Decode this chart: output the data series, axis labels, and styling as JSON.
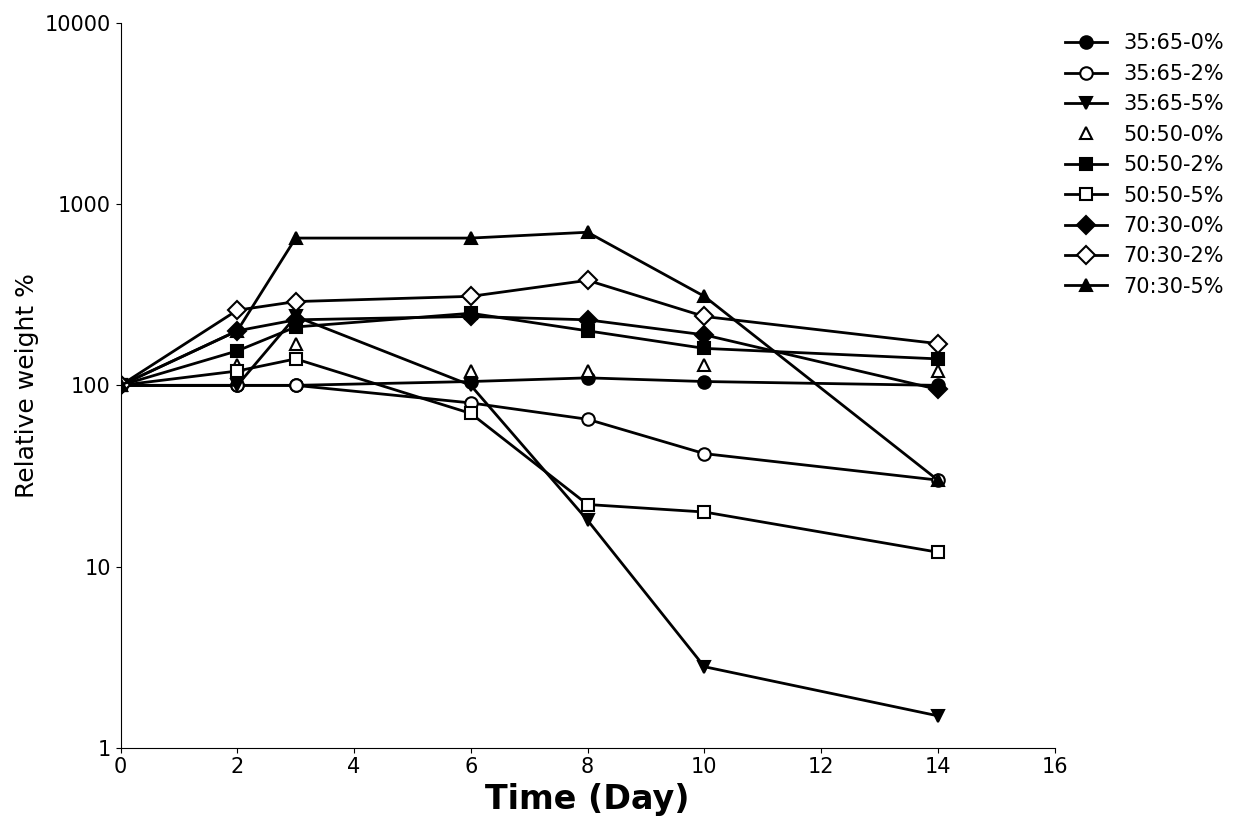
{
  "series": [
    {
      "label": "35:65-0%",
      "x": [
        0,
        2,
        3,
        6,
        8,
        10,
        14
      ],
      "y": [
        100,
        100,
        100,
        105,
        110,
        105,
        100
      ],
      "marker": "o",
      "fillstyle": "full",
      "linestyle": "-",
      "markersize": 9,
      "linewidth": 2.0
    },
    {
      "label": "35:65-2%",
      "x": [
        0,
        2,
        3,
        6,
        8,
        10,
        14
      ],
      "y": [
        100,
        100,
        100,
        80,
        65,
        42,
        30
      ],
      "marker": "o",
      "fillstyle": "none",
      "linestyle": "-",
      "markersize": 9,
      "linewidth": 2.0
    },
    {
      "label": "35:65-5%",
      "x": [
        0,
        2,
        3,
        6,
        8,
        10,
        14
      ],
      "y": [
        100,
        100,
        240,
        100,
        18,
        2.8,
        1.5
      ],
      "marker": "v",
      "fillstyle": "full",
      "linestyle": "-",
      "markersize": 9,
      "linewidth": 2.0
    },
    {
      "label": "50:50-0%",
      "x": [
        0,
        2,
        3,
        6,
        8,
        10,
        14
      ],
      "y": [
        100,
        130,
        170,
        120,
        120,
        130,
        120
      ],
      "marker": "^",
      "fillstyle": "none",
      "linestyle": "none",
      "markersize": 9,
      "linewidth": 2.0
    },
    {
      "label": "50:50-2%",
      "x": [
        0,
        2,
        3,
        6,
        8,
        10,
        14
      ],
      "y": [
        100,
        155,
        210,
        250,
        200,
        160,
        140
      ],
      "marker": "s",
      "fillstyle": "full",
      "linestyle": "-",
      "markersize": 9,
      "linewidth": 2.0
    },
    {
      "label": "50:50-5%",
      "x": [
        0,
        2,
        3,
        6,
        8,
        10,
        14
      ],
      "y": [
        100,
        120,
        140,
        70,
        22,
        20,
        12
      ],
      "marker": "s",
      "fillstyle": "none",
      "linestyle": "-",
      "markersize": 9,
      "linewidth": 2.0
    },
    {
      "label": "70:30-0%",
      "x": [
        0,
        2,
        3,
        6,
        8,
        10,
        14
      ],
      "y": [
        100,
        200,
        230,
        240,
        230,
        190,
        95
      ],
      "marker": "D",
      "fillstyle": "full",
      "linestyle": "-",
      "markersize": 9,
      "linewidth": 2.0
    },
    {
      "label": "70:30-2%",
      "x": [
        0,
        2,
        3,
        6,
        8,
        10,
        14
      ],
      "y": [
        100,
        260,
        290,
        310,
        380,
        240,
        170
      ],
      "marker": "D",
      "fillstyle": "none",
      "linestyle": "-",
      "markersize": 9,
      "linewidth": 2.0
    },
    {
      "label": "70:30-5%",
      "x": [
        0,
        2,
        3,
        6,
        8,
        10,
        14
      ],
      "y": [
        100,
        200,
        650,
        650,
        700,
        310,
        30
      ],
      "marker": "^",
      "fillstyle": "full",
      "linestyle": "-",
      "markersize": 9,
      "linewidth": 2.0
    }
  ],
  "xlabel": "Time (Day)",
  "ylabel": "Relative weight %",
  "xlim": [
    0,
    16
  ],
  "xticks": [
    0,
    2,
    4,
    6,
    8,
    10,
    12,
    14,
    16
  ],
  "ylim": [
    1,
    10000
  ],
  "yticks": [
    1,
    10,
    100,
    1000,
    10000
  ],
  "ytick_labels": [
    "1",
    "10",
    "100",
    "1000",
    "10000"
  ],
  "background_color": "white",
  "xlabel_fontsize": 24,
  "ylabel_fontsize": 18,
  "tick_fontsize": 15,
  "legend_fontsize": 15
}
